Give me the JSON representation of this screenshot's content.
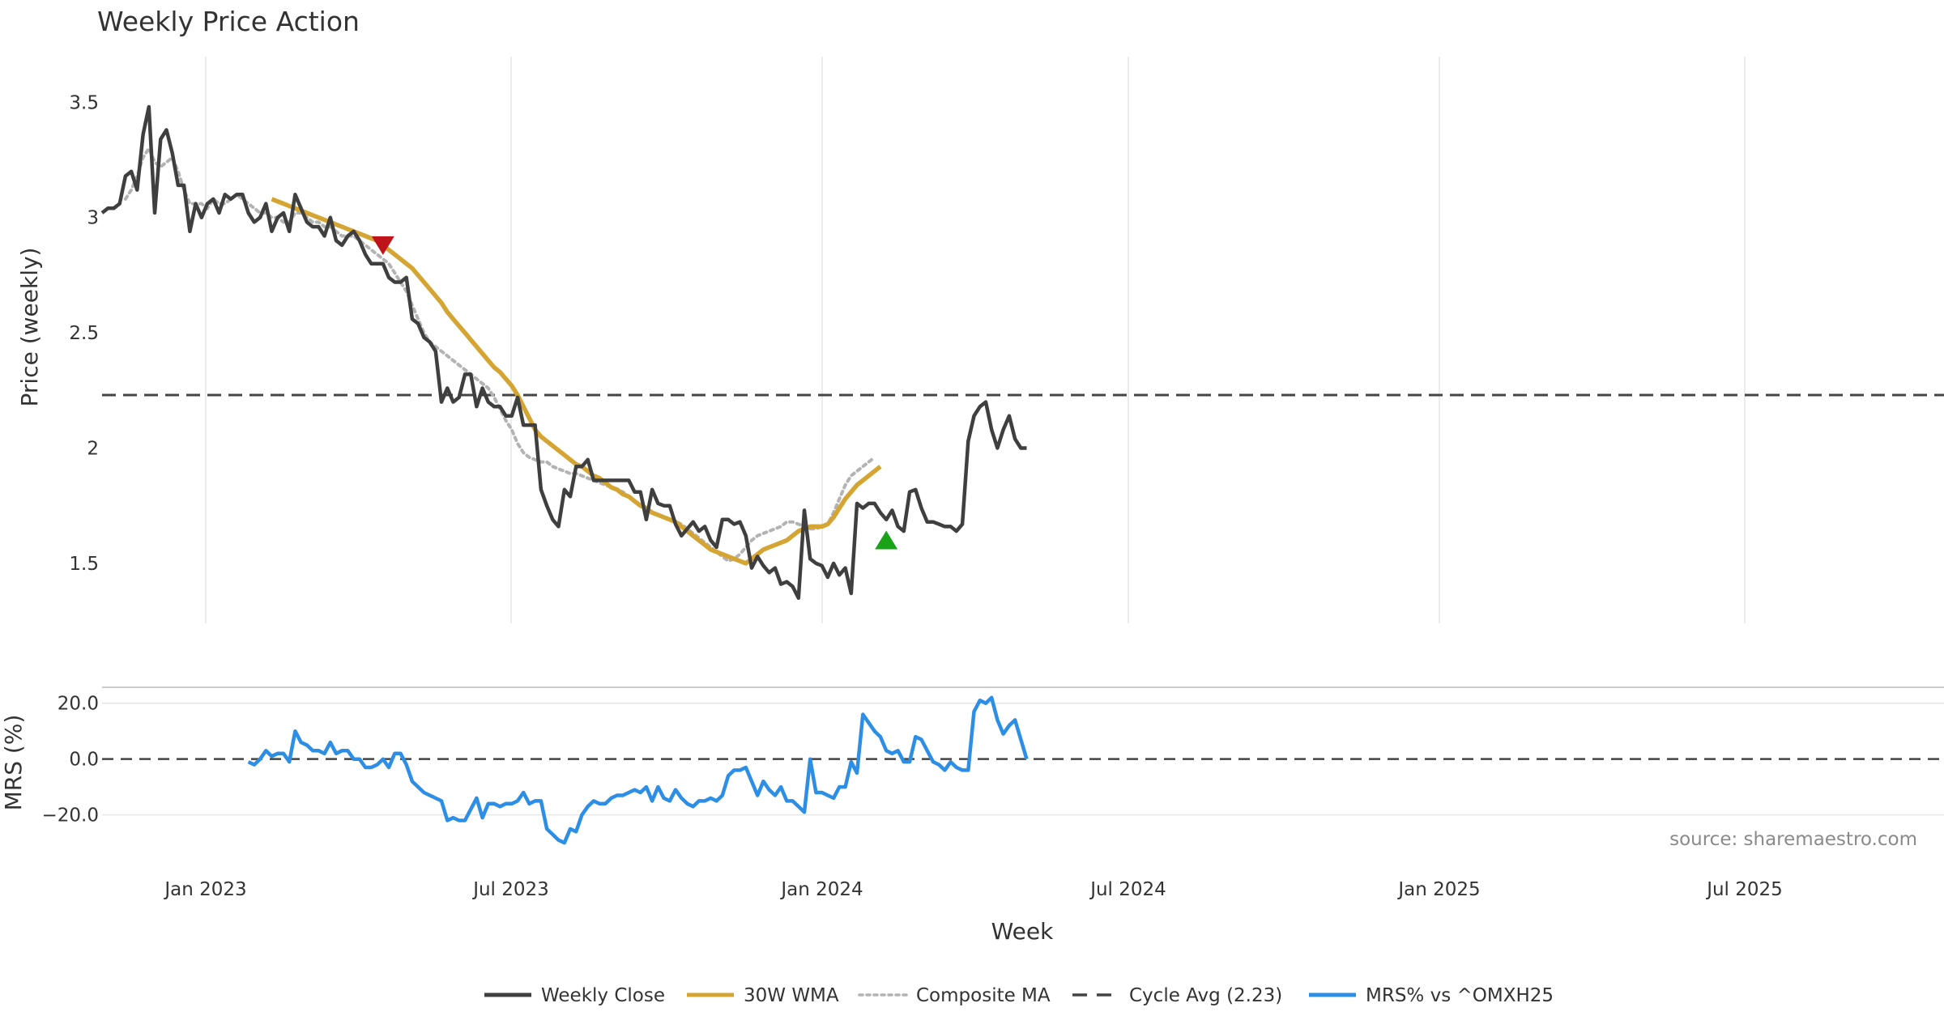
{
  "chart_data": {
    "type": "line",
    "title": "Weekly Price Action",
    "source": "source: sharemaestro.com",
    "xlabel": "Week",
    "x_ticks": [
      "Jan 2023",
      "Jul 2023",
      "Jan 2024",
      "Jul 2024",
      "Jan 2025",
      "Jul 2025"
    ],
    "price_panel": {
      "ylabel": "Price (weekly)",
      "ylim": [
        1.24,
        3.61
      ],
      "y_ticks": [
        {
          "value": 1.5,
          "label": "1.5"
        },
        {
          "value": 2.0,
          "label": "2"
        },
        {
          "value": 2.5,
          "label": "2.5"
        },
        {
          "value": 3.0,
          "label": "3"
        },
        {
          "value": 3.5,
          "label": "3.5"
        }
      ],
      "cycle_avg": 2.23,
      "series": {
        "weekly_close": [
          3.02,
          3.04,
          3.04,
          3.06,
          3.18,
          3.2,
          3.12,
          3.36,
          3.48,
          3.02,
          3.34,
          3.38,
          3.28,
          3.14,
          3.14,
          2.94,
          3.06,
          3.0,
          3.06,
          3.08,
          3.02,
          3.1,
          3.08,
          3.1,
          3.1,
          3.02,
          2.98,
          3.0,
          3.06,
          2.94,
          3.0,
          3.02,
          2.94,
          3.1,
          3.04,
          2.98,
          2.96,
          2.96,
          2.92,
          3.0,
          2.9,
          2.88,
          2.92,
          2.94,
          2.9,
          2.84,
          2.8,
          2.8,
          2.8,
          2.74,
          2.72,
          2.72,
          2.74,
          2.56,
          2.54,
          2.48,
          2.46,
          2.42,
          2.2,
          2.26,
          2.2,
          2.22,
          2.32,
          2.32,
          2.18,
          2.26,
          2.2,
          2.18,
          2.18,
          2.14,
          2.14,
          2.22,
          2.1,
          2.1,
          2.1,
          1.82,
          1.75,
          1.69,
          1.66,
          1.82,
          1.79,
          1.92,
          1.92,
          1.95,
          1.86,
          1.86,
          1.86,
          1.86,
          1.86,
          1.86,
          1.86,
          1.81,
          1.81,
          1.69,
          1.82,
          1.76,
          1.75,
          1.75,
          1.67,
          1.62,
          1.65,
          1.68,
          1.64,
          1.66,
          1.6,
          1.57,
          1.69,
          1.69,
          1.67,
          1.68,
          1.62,
          1.48,
          1.53,
          1.49,
          1.46,
          1.48,
          1.41,
          1.42,
          1.4,
          1.35,
          1.73,
          1.52,
          1.5,
          1.49,
          1.44,
          1.5,
          1.45,
          1.48,
          1.37,
          1.76,
          1.74,
          1.76,
          1.76,
          1.72,
          1.69,
          1.73,
          1.66,
          1.64,
          1.81,
          1.82,
          1.74,
          1.68,
          1.68,
          1.67,
          1.66,
          1.66,
          1.64,
          1.67,
          2.03,
          2.14,
          2.18,
          2.2,
          2.08,
          2.0,
          2.08,
          2.14,
          2.04,
          2.0,
          2.0
        ],
        "wma_30w": [
          null,
          null,
          null,
          null,
          null,
          null,
          null,
          null,
          null,
          null,
          null,
          null,
          null,
          null,
          null,
          null,
          null,
          null,
          null,
          null,
          null,
          null,
          null,
          null,
          null,
          null,
          null,
          null,
          null,
          3.08,
          3.07,
          3.06,
          3.05,
          3.04,
          3.03,
          3.02,
          3.01,
          3.0,
          2.99,
          2.98,
          2.97,
          2.96,
          2.95,
          2.94,
          2.93,
          2.92,
          2.91,
          2.9,
          2.88,
          2.86,
          2.84,
          2.82,
          2.8,
          2.78,
          2.75,
          2.72,
          2.69,
          2.66,
          2.63,
          2.59,
          2.56,
          2.53,
          2.5,
          2.47,
          2.44,
          2.41,
          2.38,
          2.35,
          2.33,
          2.3,
          2.27,
          2.23,
          2.18,
          2.13,
          2.08,
          2.05,
          2.03,
          2.01,
          1.99,
          1.97,
          1.95,
          1.93,
          1.92,
          1.9,
          1.88,
          1.87,
          1.85,
          1.83,
          1.82,
          1.8,
          1.79,
          1.77,
          1.75,
          1.74,
          1.72,
          1.71,
          1.7,
          1.69,
          1.68,
          1.66,
          1.64,
          1.62,
          1.6,
          1.58,
          1.56,
          1.55,
          1.54,
          1.53,
          1.52,
          1.51,
          1.5,
          1.52,
          1.54,
          1.56,
          1.57,
          1.58,
          1.59,
          1.6,
          1.62,
          1.64,
          1.65,
          1.66,
          1.66,
          1.66,
          1.67,
          1.7,
          1.74,
          1.78,
          1.81,
          1.84,
          1.86,
          1.88,
          1.9,
          1.92
        ],
        "composite_ma": [
          null,
          null,
          null,
          null,
          3.08,
          3.12,
          3.18,
          3.26,
          3.3,
          3.24,
          3.22,
          3.24,
          3.26,
          3.2,
          3.12,
          3.06,
          3.06,
          3.06,
          3.04,
          3.08,
          3.06,
          3.06,
          3.08,
          3.1,
          3.08,
          3.06,
          3.04,
          3.02,
          3.02,
          3.0,
          3.0,
          2.98,
          2.98,
          3.02,
          3.02,
          3.0,
          2.98,
          2.98,
          2.96,
          2.96,
          2.94,
          2.92,
          2.92,
          2.92,
          2.9,
          2.88,
          2.86,
          2.84,
          2.82,
          2.8,
          2.76,
          2.72,
          2.68,
          2.62,
          2.56,
          2.5,
          2.46,
          2.44,
          2.42,
          2.4,
          2.38,
          2.36,
          2.34,
          2.32,
          2.3,
          2.28,
          2.26,
          2.22,
          2.17,
          2.12,
          2.08,
          2.02,
          1.98,
          1.96,
          1.95,
          1.94,
          1.94,
          1.92,
          1.91,
          1.9,
          1.89,
          1.89,
          1.88,
          1.87,
          1.86,
          1.85,
          1.84,
          1.83,
          1.82,
          1.81,
          1.79,
          1.77,
          1.75,
          1.74,
          1.72,
          1.71,
          1.7,
          1.69,
          1.68,
          1.67,
          1.65,
          1.63,
          1.61,
          1.59,
          1.57,
          1.55,
          1.53,
          1.51,
          1.52,
          1.54,
          1.57,
          1.6,
          1.62,
          1.63,
          1.64,
          1.65,
          1.66,
          1.68,
          1.68,
          1.67,
          1.66,
          1.65,
          1.65,
          1.66,
          1.67,
          1.72,
          1.78,
          1.84,
          1.88,
          1.9,
          1.92,
          1.94,
          1.96
        ],
        "sell_signal": {
          "index": 48,
          "value": 2.88
        },
        "buy_signal": {
          "index": 134,
          "value": 1.6
        }
      }
    },
    "mrs_panel": {
      "ylabel": "MRS (%)",
      "ylim": [
        -32,
        26
      ],
      "y_ticks": [
        {
          "value": 20,
          "label": "20.0"
        },
        {
          "value": 0,
          "label": "0.0"
        },
        {
          "value": -20,
          "label": "−20.0"
        }
      ],
      "zero_line": 0,
      "start_index": 25,
      "values": [
        -1,
        -2,
        0,
        3,
        1,
        2,
        2,
        -1,
        10,
        6,
        5,
        3,
        3,
        2,
        6,
        2,
        3,
        3,
        0,
        0,
        -3,
        -3,
        -2,
        0,
        -3,
        2,
        2,
        -2,
        -8,
        -10,
        -12,
        -13,
        -14,
        -15,
        -22,
        -21,
        -22,
        -22,
        -18,
        -14,
        -21,
        -16,
        -16,
        -17,
        -16,
        -16,
        -15,
        -12,
        -16,
        -15,
        -15,
        -25,
        -27,
        -29,
        -30,
        -25,
        -26,
        -20,
        -17,
        -15,
        -16,
        -16,
        -14,
        -13,
        -13,
        -12,
        -11,
        -12,
        -10,
        -15,
        -10,
        -14,
        -15,
        -11,
        -14,
        -16,
        -17,
        -15,
        -15,
        -14,
        -15,
        -13,
        -6,
        -4,
        -4,
        -3,
        -8,
        -13,
        -8,
        -11,
        -13,
        -10,
        -15,
        -15,
        -17,
        -19,
        0,
        -12,
        -12,
        -13,
        -14,
        -10,
        -10,
        -1,
        -5,
        16,
        13,
        10,
        8,
        3,
        2,
        3,
        -1,
        -1,
        8,
        7,
        3,
        -1,
        -2,
        -4,
        -1,
        -3,
        -4,
        -4,
        17,
        21,
        20,
        22,
        14,
        9,
        12,
        14,
        7,
        0
      ]
    },
    "legend": [
      {
        "label": "Weekly Close",
        "color": "#3f3f3f",
        "style": "solid"
      },
      {
        "label": "30W WMA",
        "color": "#d4a532",
        "style": "solid"
      },
      {
        "label": "Composite MA",
        "color": "#b3b3b3",
        "style": "dotted"
      },
      {
        "label": "Cycle Avg (2.23)",
        "color": "#444444",
        "style": "dashed"
      },
      {
        "label": "MRS% vs ^OMXH25",
        "color": "#2d8ee6",
        "style": "solid"
      }
    ],
    "colors": {
      "weekly_close": "#3f3f3f",
      "wma": "#d4a532",
      "composite": "#b3b3b3",
      "cycle": "#444444",
      "mrs": "#2d8ee6",
      "sell": "#c0141b",
      "buy": "#19a319"
    }
  }
}
